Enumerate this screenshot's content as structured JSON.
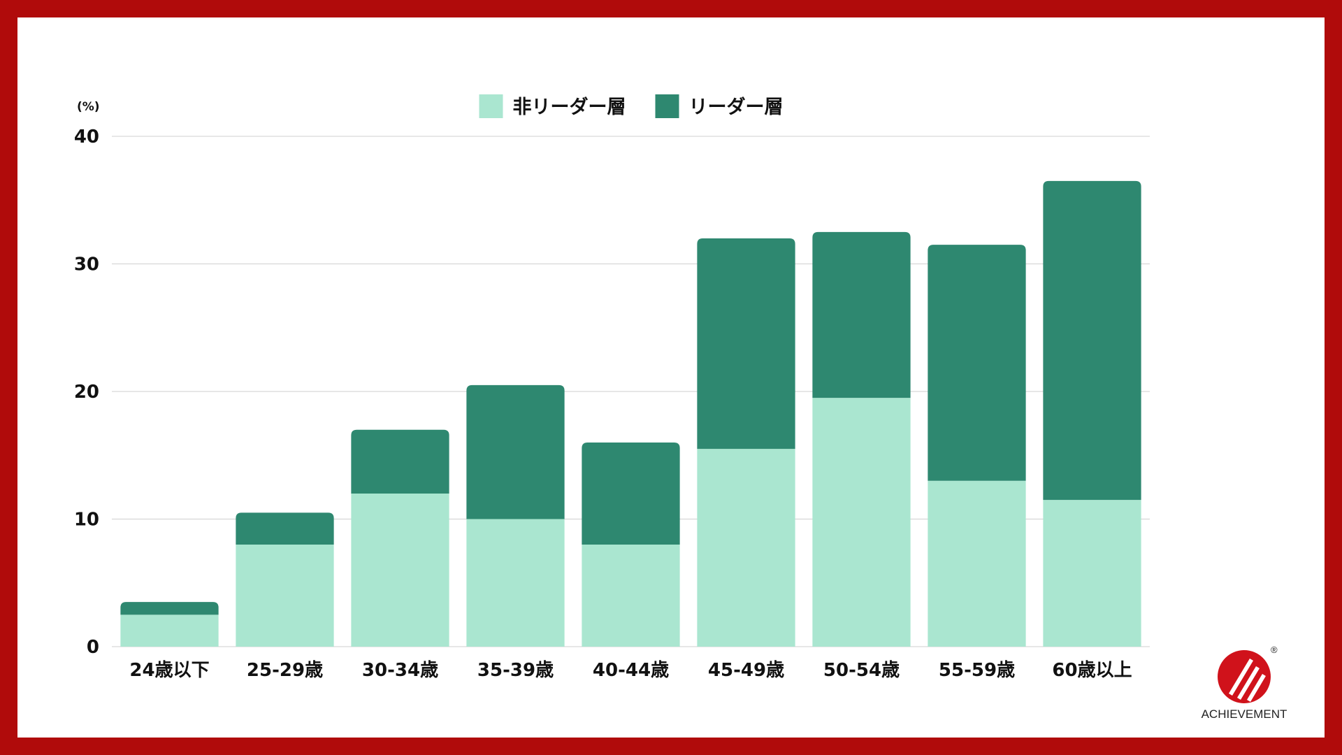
{
  "colors": {
    "frame": "#b00b0b",
    "background": "#ffffff",
    "non_leader": "#aae6d0",
    "leader": "#2e8870",
    "gridline": "#cfcfcf",
    "text": "#111111",
    "logo_red": "#d0121b"
  },
  "chart_data": {
    "type": "bar",
    "stacked": true,
    "unit_label": "(%)",
    "categories": [
      "24歳以下",
      "25-29歳",
      "30-34歳",
      "35-39歳",
      "40-44歳",
      "45-49歳",
      "50-54歳",
      "55-59歳",
      "60歳以上"
    ],
    "series": [
      {
        "name": "非リーダー層",
        "color": "#aae6d0",
        "values": [
          2.5,
          8,
          12,
          10,
          8,
          15.5,
          19.5,
          13,
          11.5
        ]
      },
      {
        "name": "リーダー層",
        "color": "#2e8870",
        "values": [
          1,
          2.5,
          5,
          10.5,
          8,
          16.5,
          13,
          18.5,
          25
        ]
      }
    ],
    "ylim": [
      0,
      40
    ],
    "yticks": [
      0,
      10,
      20,
      30,
      40
    ],
    "grid": true,
    "legend_position": "top-center"
  },
  "logo": {
    "icon": "achievement-logo-icon",
    "text": "ACHIEVEMENT",
    "registered_mark": "®"
  }
}
